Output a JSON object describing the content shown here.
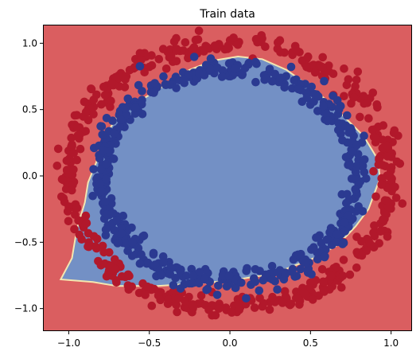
{
  "chart_data": {
    "type": "scatter",
    "title": "Train data",
    "xlabel": "",
    "ylabel": "",
    "xlim": [
      -1.16,
      1.13
    ],
    "ylim": [
      -1.17,
      1.14
    ],
    "x_ticks": [
      -1.0,
      -0.5,
      0.0,
      0.5,
      1.0
    ],
    "x_tick_labels": [
      "−1.0",
      "−0.5",
      "0.0",
      "0.5",
      "1.0"
    ],
    "y_ticks": [
      -1.0,
      -0.5,
      0.0,
      0.5,
      1.0
    ],
    "y_tick_labels": [
      "−1.0",
      "−0.5",
      "0.0",
      "0.5",
      "1.0"
    ],
    "grid": false,
    "background_region": {
      "label": 0,
      "color": "#da5e60"
    },
    "decision_region": {
      "label": 1,
      "color": "#7390c5",
      "edge_color": "#f4e6b0",
      "polygon": [
        [
          -0.38,
          0.7
        ],
        [
          -0.25,
          0.8
        ],
        [
          -0.1,
          0.87
        ],
        [
          0.05,
          0.9
        ],
        [
          0.2,
          0.88
        ],
        [
          0.35,
          0.8
        ],
        [
          0.5,
          0.67
        ],
        [
          0.62,
          0.55
        ],
        [
          0.73,
          0.42
        ],
        [
          0.83,
          0.3
        ],
        [
          0.92,
          0.12
        ],
        [
          0.93,
          -0.02
        ],
        [
          0.9,
          -0.12
        ],
        [
          0.86,
          -0.25
        ],
        [
          0.78,
          -0.38
        ],
        [
          0.67,
          -0.52
        ],
        [
          0.52,
          -0.62
        ],
        [
          0.35,
          -0.7
        ],
        [
          0.2,
          -0.75
        ],
        [
          0.0,
          -0.79
        ],
        [
          -0.2,
          -0.81
        ],
        [
          -0.45,
          -0.83
        ],
        [
          -0.7,
          -0.83
        ],
        [
          -0.85,
          -0.8
        ],
        [
          -1.05,
          -0.78
        ],
        [
          -0.98,
          -0.62
        ],
        [
          -0.95,
          -0.4
        ],
        [
          -0.9,
          -0.2
        ],
        [
          -0.88,
          -0.05
        ],
        [
          -0.83,
          0.1
        ],
        [
          -0.78,
          0.28
        ],
        [
          -0.7,
          0.45
        ],
        [
          -0.58,
          0.55
        ]
      ]
    },
    "series": [
      {
        "class": 0,
        "color": "#b2182b",
        "shape": "ring",
        "points": 500,
        "center": [
          0.0,
          0.0
        ],
        "radius": 1.0,
        "noise": 0.04
      },
      {
        "class": 1,
        "color": "#2b3a91",
        "shape": "ring",
        "points": 500,
        "center": [
          0.0,
          0.0
        ],
        "radius": 0.8,
        "noise": 0.04
      }
    ]
  }
}
